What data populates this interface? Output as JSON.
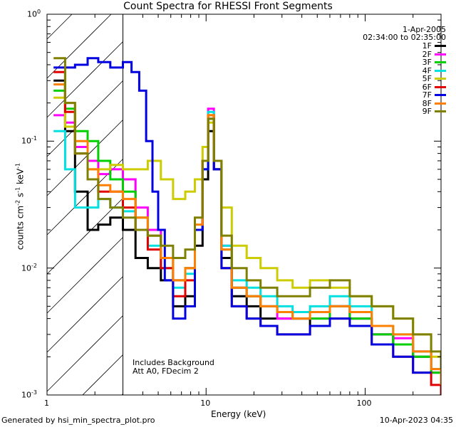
{
  "chart_data": {
    "type": "line",
    "title": "Count Spectra for RHESSI Front Segments",
    "xlabel": "Energy (keV)",
    "ylabel": "counts cm-2 s-1 keV-1",
    "xscale": "log",
    "yscale": "log",
    "xlim": [
      1.0,
      300.0
    ],
    "ylim": [
      0.001,
      1.0
    ],
    "x_tick_labels": [
      "1",
      "10",
      "100"
    ],
    "y_tick_labels": [
      "10",
      "10",
      "10",
      "10"
    ],
    "y_tick_exponents": [
      "0",
      "-1",
      "-2",
      "-3"
    ],
    "date": "1-Apr-2005",
    "time_range": "02:34:00 to 02:35:00",
    "annotations": [
      "Includes Background",
      "Att A0, FDecim 2"
    ],
    "shaded_region_keV": [
      1.0,
      3.0
    ],
    "series": [
      {
        "name": "1F",
        "color": "#000000",
        "energies": [
          1.1,
          1.3,
          1.5,
          1.8,
          2.1,
          2.5,
          3.0,
          3.6,
          4.3,
          5.2,
          6.2,
          7.4,
          8.5,
          9.5,
          10.3,
          11.2,
          12.5,
          14.5,
          18,
          22,
          28,
          35,
          45,
          60,
          80,
          110,
          150,
          200,
          260,
          300
        ],
        "values": [
          0.3,
          0.12,
          0.04,
          0.02,
          0.022,
          0.025,
          0.02,
          0.012,
          0.01,
          0.008,
          0.005,
          0.006,
          0.015,
          0.05,
          0.12,
          0.06,
          0.012,
          0.006,
          0.005,
          0.004,
          0.004,
          0.004,
          0.0035,
          0.005,
          0.004,
          0.003,
          0.0025,
          0.002,
          0.0015,
          0.0012
        ]
      },
      {
        "name": "2F",
        "color": "#ff00ff",
        "energies": [
          1.1,
          1.3,
          1.5,
          1.8,
          2.1,
          2.5,
          3.0,
          3.6,
          4.3,
          5.2,
          6.2,
          7.4,
          8.5,
          9.5,
          10.3,
          11.2,
          12.5,
          14.5,
          18,
          22,
          28,
          35,
          45,
          60,
          80,
          110,
          150,
          200,
          260,
          300
        ],
        "values": [
          0.16,
          0.14,
          0.09,
          0.07,
          0.055,
          0.06,
          0.05,
          0.03,
          0.02,
          0.012,
          0.008,
          0.01,
          0.02,
          0.07,
          0.18,
          0.07,
          0.015,
          0.007,
          0.006,
          0.005,
          0.004,
          0.004,
          0.004,
          0.005,
          0.004,
          0.003,
          0.0028,
          0.0022,
          0.0016,
          0.0012
        ]
      },
      {
        "name": "3F",
        "color": "#00d000",
        "energies": [
          1.1,
          1.3,
          1.5,
          1.8,
          2.1,
          2.5,
          3.0,
          3.6,
          4.3,
          5.2,
          6.2,
          7.4,
          8.5,
          9.5,
          10.3,
          11.2,
          12.5,
          14.5,
          18,
          22,
          28,
          35,
          45,
          60,
          80,
          110,
          150,
          200,
          260,
          300
        ],
        "values": [
          0.25,
          0.18,
          0.12,
          0.1,
          0.07,
          0.05,
          0.04,
          0.025,
          0.018,
          0.012,
          0.008,
          0.01,
          0.02,
          0.06,
          0.15,
          0.06,
          0.014,
          0.007,
          0.006,
          0.005,
          0.0045,
          0.004,
          0.004,
          0.005,
          0.004,
          0.003,
          0.0025,
          0.002,
          0.0015,
          0.0012
        ]
      },
      {
        "name": "4F",
        "color": "#00e0e0",
        "energies": [
          1.1,
          1.3,
          1.5,
          1.8,
          2.1,
          2.5,
          3.0,
          3.6,
          4.3,
          5.2,
          6.2,
          7.4,
          8.5,
          9.5,
          10.3,
          11.2,
          12.5,
          14.5,
          18,
          22,
          28,
          35,
          45,
          60,
          80,
          110,
          150,
          200,
          260,
          300
        ],
        "values": [
          0.12,
          0.06,
          0.03,
          0.03,
          0.035,
          0.03,
          0.028,
          0.02,
          0.015,
          0.01,
          0.007,
          0.009,
          0.02,
          0.06,
          0.17,
          0.07,
          0.015,
          0.008,
          0.007,
          0.006,
          0.005,
          0.0045,
          0.005,
          0.006,
          0.005,
          0.0035,
          0.003,
          0.0022,
          0.0016,
          0.0013
        ]
      },
      {
        "name": "5F",
        "color": "#cccc00",
        "energies": [
          1.1,
          1.3,
          1.5,
          1.8,
          2.1,
          2.5,
          3.0,
          3.6,
          4.3,
          5.2,
          6.2,
          7.4,
          8.5,
          9.5,
          10.3,
          11.2,
          12.5,
          14.5,
          18,
          22,
          28,
          35,
          45,
          60,
          80,
          110,
          150,
          200,
          260,
          300
        ],
        "values": [
          0.22,
          0.13,
          0.08,
          0.06,
          0.06,
          0.065,
          0.06,
          0.06,
          0.07,
          0.05,
          0.035,
          0.04,
          0.05,
          0.09,
          0.14,
          0.07,
          0.03,
          0.015,
          0.012,
          0.01,
          0.008,
          0.007,
          0.008,
          0.007,
          0.006,
          0.005,
          0.004,
          0.003,
          0.002,
          0.0015
        ]
      },
      {
        "name": "6F",
        "color": "#e00000",
        "energies": [
          1.1,
          1.3,
          1.5,
          1.8,
          2.1,
          2.5,
          3.0,
          3.6,
          4.3,
          5.2,
          6.2,
          7.4,
          8.5,
          9.5,
          10.3,
          11.2,
          12.5,
          14.5,
          18,
          22,
          28,
          35,
          45,
          60,
          80,
          110,
          150,
          200,
          260,
          300
        ],
        "values": [
          0.35,
          0.17,
          0.08,
          0.05,
          0.04,
          0.04,
          0.03,
          0.02,
          0.014,
          0.01,
          0.006,
          0.008,
          0.02,
          0.07,
          0.16,
          0.06,
          0.01,
          0.005,
          0.004,
          0.0035,
          0.003,
          0.003,
          0.0035,
          0.004,
          0.0035,
          0.0025,
          0.002,
          0.0015,
          0.0012,
          0.001
        ]
      },
      {
        "name": "7F",
        "color": "#0000e0",
        "energies": [
          1.1,
          1.3,
          1.5,
          1.8,
          2.1,
          2.5,
          3.0,
          3.4,
          3.8,
          4.2,
          4.6,
          5.0,
          5.5,
          6.2,
          7.4,
          8.5,
          9.5,
          10.3,
          11.2,
          12.5,
          14.5,
          18,
          22,
          28,
          35,
          45,
          60,
          80,
          110,
          150,
          200,
          260,
          300
        ],
        "values": [
          0.38,
          0.38,
          0.4,
          0.45,
          0.42,
          0.38,
          0.42,
          0.35,
          0.25,
          0.1,
          0.04,
          0.02,
          0.008,
          0.004,
          0.005,
          0.02,
          0.06,
          0.15,
          0.06,
          0.01,
          0.005,
          0.004,
          0.0035,
          0.003,
          0.003,
          0.0035,
          0.004,
          0.0035,
          0.0025,
          0.002,
          0.0015
        ]
      },
      {
        "name": "8F",
        "color": "#ff8000",
        "energies": [
          1.1,
          1.3,
          1.5,
          1.8,
          2.1,
          2.5,
          3.0,
          3.6,
          4.3,
          5.2,
          6.2,
          7.4,
          8.5,
          9.5,
          10.3,
          11.2,
          12.5,
          14.5,
          18,
          22,
          28,
          35,
          45,
          60,
          80,
          110,
          150,
          200,
          260,
          300
        ],
        "values": [
          0.28,
          0.2,
          0.1,
          0.06,
          0.045,
          0.04,
          0.035,
          0.025,
          0.018,
          0.012,
          0.008,
          0.01,
          0.022,
          0.07,
          0.16,
          0.07,
          0.014,
          0.007,
          0.006,
          0.005,
          0.0045,
          0.004,
          0.0045,
          0.005,
          0.0045,
          0.0035,
          0.003,
          0.0022,
          0.0016,
          0.0012
        ]
      },
      {
        "name": "9F",
        "color": "#808000",
        "energies": [
          1.1,
          1.3,
          1.5,
          1.8,
          2.1,
          2.5,
          3.0,
          3.6,
          4.3,
          5.2,
          6.2,
          7.4,
          8.5,
          9.5,
          10.3,
          11.2,
          12.5,
          14.5,
          18,
          22,
          28,
          35,
          45,
          60,
          80,
          110,
          150,
          200,
          260,
          300
        ],
        "values": [
          0.45,
          0.2,
          0.08,
          0.05,
          0.035,
          0.03,
          0.025,
          0.02,
          0.018,
          0.015,
          0.012,
          0.014,
          0.025,
          0.07,
          0.15,
          0.07,
          0.018,
          0.01,
          0.008,
          0.007,
          0.006,
          0.006,
          0.007,
          0.008,
          0.006,
          0.005,
          0.004,
          0.003,
          0.0022,
          0.0016
        ]
      }
    ]
  },
  "footer": {
    "generated_by": "Generated by hsi_min_spectra_plot.pro",
    "timestamp": "10-Apr-2023 04:35"
  }
}
